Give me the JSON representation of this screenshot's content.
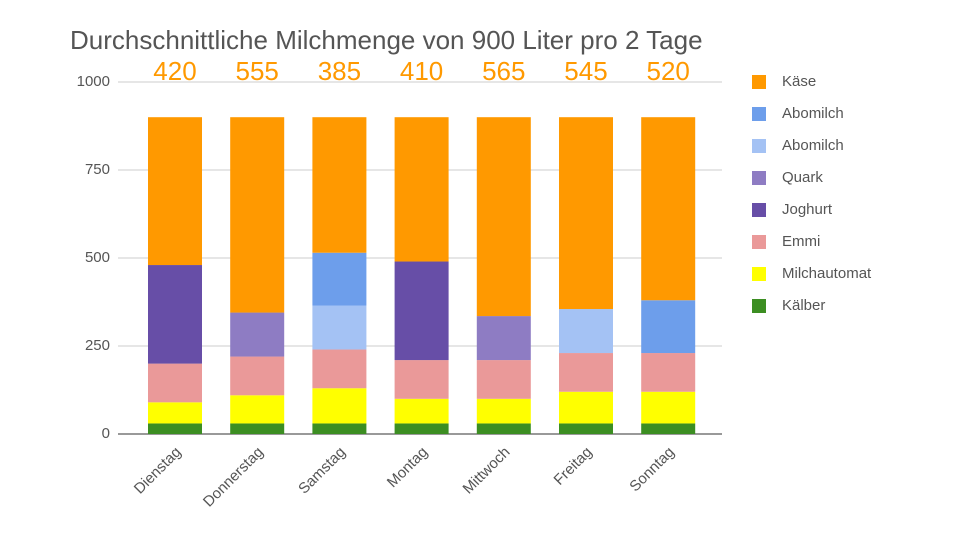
{
  "chart_data": {
    "type": "stacked_bar",
    "title": "Durchschnittliche Milchmenge von 900 Liter pro 2 Tage",
    "categories": [
      "Dienstag",
      "Donnerstag",
      "Samstag",
      "Montag",
      "Mittwoch",
      "Freitag",
      "Sonntag"
    ],
    "series": [
      {
        "name": "Kälber",
        "color": "#3c8e22",
        "values": [
          30,
          30,
          30,
          30,
          30,
          30,
          30
        ]
      },
      {
        "name": "Milchautomat",
        "color": "#ffff00",
        "values": [
          60,
          80,
          100,
          70,
          70,
          90,
          90
        ]
      },
      {
        "name": "Emmi",
        "color": "#ea9999",
        "values": [
          110,
          110,
          110,
          110,
          110,
          110,
          110
        ]
      },
      {
        "name": "Joghurt",
        "color": "#674ea7",
        "values": [
          280,
          null,
          null,
          280,
          null,
          null,
          null
        ]
      },
      {
        "name": "Quark",
        "color": "#8e7cc3",
        "values": [
          null,
          125,
          null,
          null,
          125,
          null,
          null
        ]
      },
      {
        "name": "Abomilch",
        "color": "#a4c2f4",
        "values": [
          null,
          null,
          125,
          null,
          null,
          125,
          null
        ]
      },
      {
        "name": "Abomilch",
        "color": "#6d9eeb",
        "values": [
          null,
          null,
          150,
          null,
          null,
          null,
          150
        ]
      },
      {
        "name": "Käse",
        "color": "#ff9900",
        "values": [
          420,
          555,
          385,
          410,
          565,
          545,
          520
        ]
      }
    ],
    "label_series": 7,
    "ylim": [
      0,
      1000
    ],
    "yticks": [
      0,
      250,
      500,
      750,
      1000
    ],
    "grid": true,
    "legend": "right"
  }
}
